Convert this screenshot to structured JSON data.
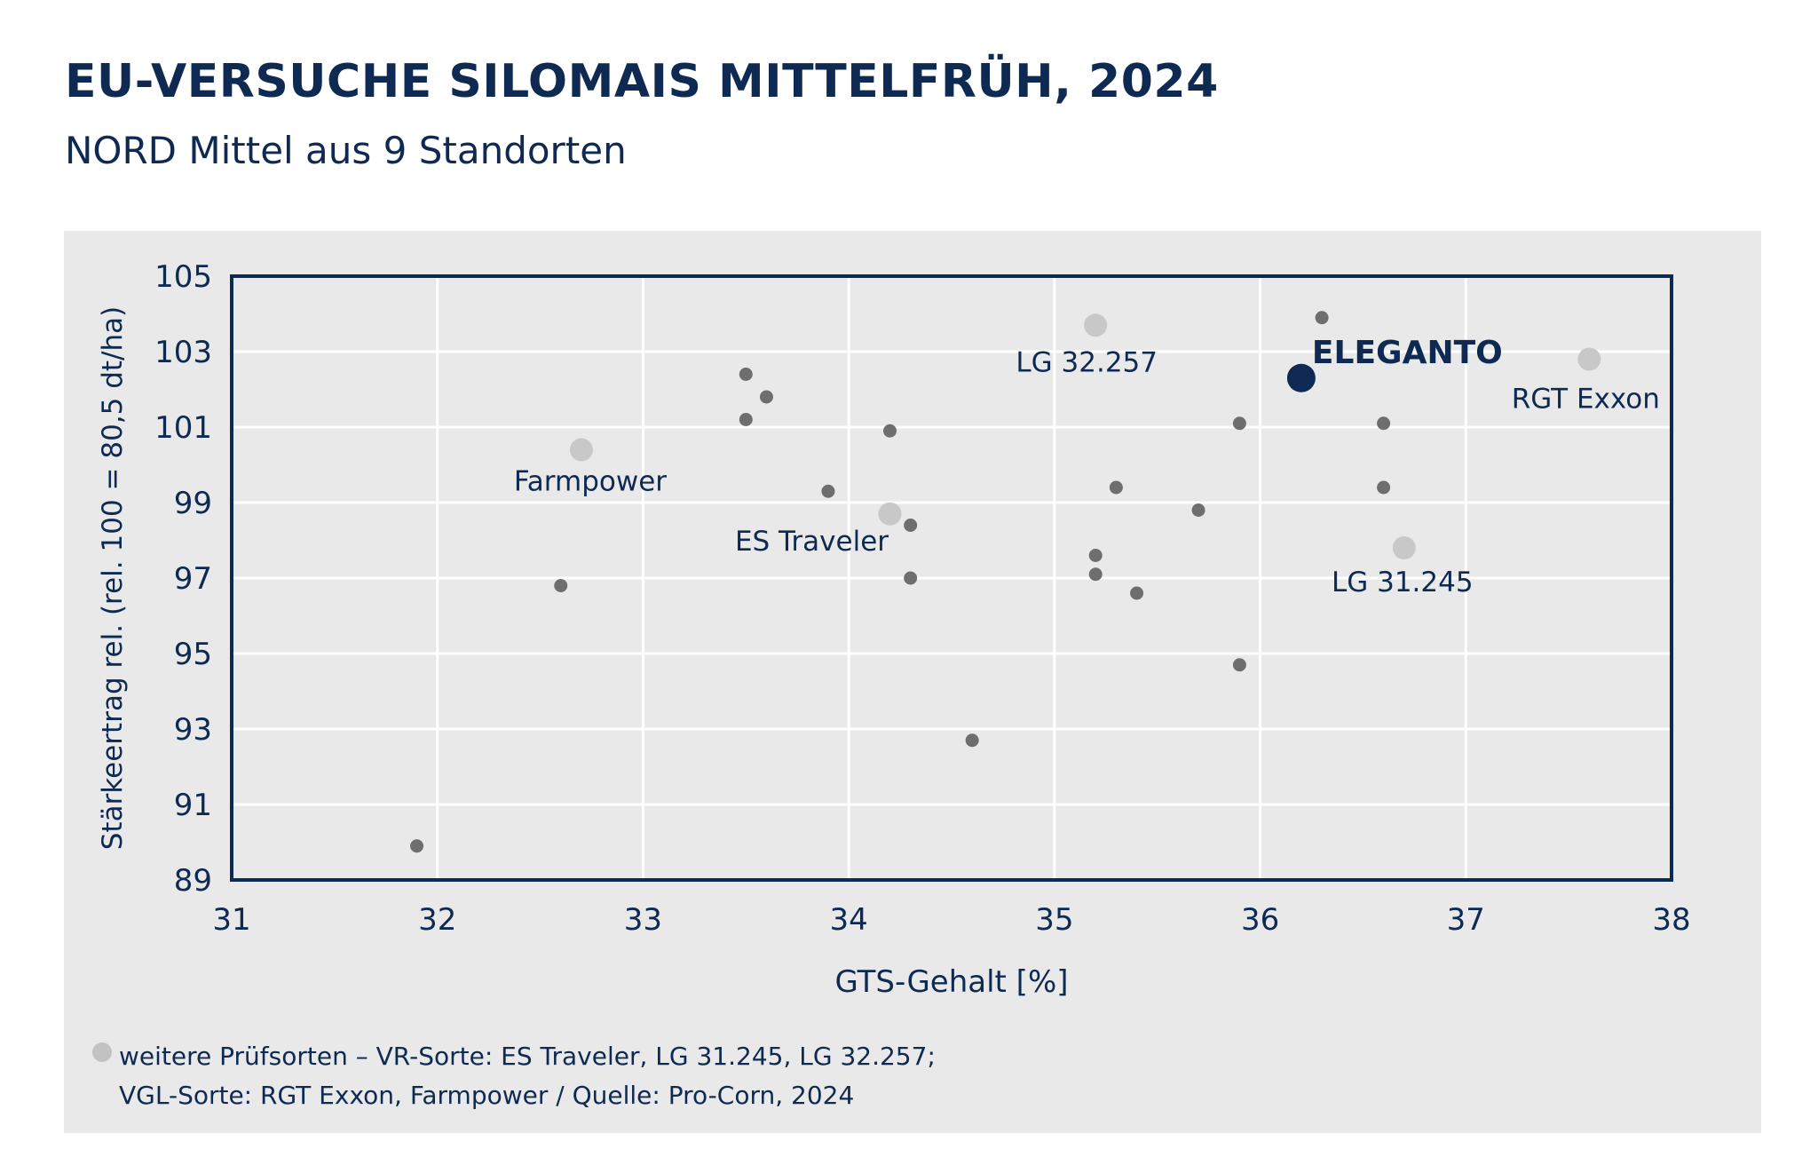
{
  "title": "EU-VERSUCHE SILOMAIS MITTELFRÜH, 2024",
  "subtitle": "NORD Mittel aus 9 Standorten",
  "footnote": {
    "line1": "weitere Prüfsorten – VR-Sorte: ES Traveler, LG 31.245, LG 32.257;",
    "line2": "VGL-Sorte: RGT Exxon, Farmpower / Quelle: Pro-Corn, 2024"
  },
  "colors": {
    "highlight": "#0e2a52",
    "comparison": "#c8c8c8",
    "other": "#6e6e6e",
    "frame": "#0e2a52",
    "grid": "#ffffff",
    "panel": "#e9e9e9"
  },
  "chart_data": {
    "type": "scatter",
    "xlabel": "GTS-Gehalt [%]",
    "ylabel": "Stärkeertrag rel. (rel. 100 = 80,5 dt/ha)",
    "xlim": [
      31,
      38
    ],
    "ylim": [
      89,
      105
    ],
    "xticks": [
      "31",
      "32",
      "33",
      "34",
      "35",
      "36",
      "37",
      "38"
    ],
    "yticks": [
      "89",
      "91",
      "93",
      "95",
      "97",
      "99",
      "101",
      "103",
      "105"
    ],
    "grid": true,
    "highlight": [
      {
        "name": "ELEGANTO",
        "x": 36.2,
        "y": 102.3
      }
    ],
    "comparison": [
      {
        "name": "LG 32.257",
        "x": 35.2,
        "y": 103.7
      },
      {
        "name": "RGT Exxon",
        "x": 37.6,
        "y": 102.8
      },
      {
        "name": "Farmpower",
        "x": 32.7,
        "y": 100.4
      },
      {
        "name": "ES Traveler",
        "x": 34.2,
        "y": 98.7
      },
      {
        "name": "LG 31.245",
        "x": 36.7,
        "y": 97.8
      }
    ],
    "others": [
      {
        "x": 36.3,
        "y": 103.9
      },
      {
        "x": 33.5,
        "y": 102.4
      },
      {
        "x": 33.6,
        "y": 101.8
      },
      {
        "x": 33.5,
        "y": 101.2
      },
      {
        "x": 34.2,
        "y": 100.9
      },
      {
        "x": 35.9,
        "y": 101.1
      },
      {
        "x": 36.6,
        "y": 101.1
      },
      {
        "x": 33.9,
        "y": 99.3
      },
      {
        "x": 35.3,
        "y": 99.4
      },
      {
        "x": 36.6,
        "y": 99.4
      },
      {
        "x": 35.7,
        "y": 98.8
      },
      {
        "x": 34.3,
        "y": 98.4
      },
      {
        "x": 35.2,
        "y": 97.6
      },
      {
        "x": 35.2,
        "y": 97.1
      },
      {
        "x": 34.3,
        "y": 97.0
      },
      {
        "x": 35.4,
        "y": 96.6
      },
      {
        "x": 32.6,
        "y": 96.8
      },
      {
        "x": 35.9,
        "y": 94.7
      },
      {
        "x": 34.6,
        "y": 92.7
      },
      {
        "x": 31.9,
        "y": 89.9
      }
    ]
  }
}
